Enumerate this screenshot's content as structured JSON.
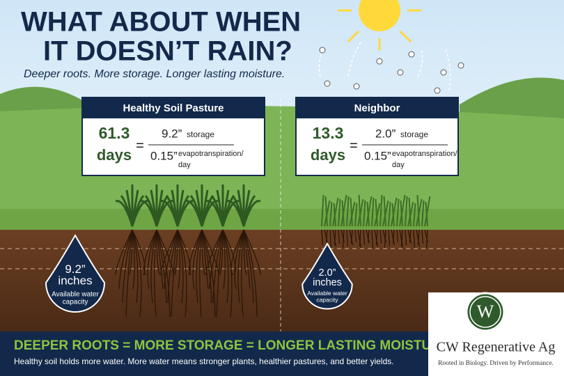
{
  "header": {
    "title_lines": [
      "WHAT ABOUT WHEN",
      "IT DOESN’T RAIN?"
    ],
    "subtitle": "Deeper roots. More storage. Longer lasting moisture."
  },
  "panels": [
    {
      "title": "Healthy Soil Pasture",
      "days": "61.3",
      "days_unit": "days",
      "equals": "=",
      "storage": "9.2”",
      "storage_label": "storage",
      "et": "0.15”",
      "et_label_lines": [
        "evapotranspiration/",
        "day"
      ]
    },
    {
      "title": "Neighbor",
      "days": "13.3",
      "days_unit": "days",
      "equals": "=",
      "storage": "2.0”",
      "storage_label": "storage",
      "et": "0.15”",
      "et_label_lines": [
        "evapotranspiration/",
        "day"
      ]
    }
  ],
  "drops": [
    {
      "value": "9.2”",
      "unit": "inches",
      "caption_lines": [
        "Available water",
        "capacity"
      ]
    },
    {
      "value": "2.0”",
      "unit": "inches",
      "caption_lines": [
        "Available water",
        "capacity"
      ]
    }
  ],
  "footer": {
    "headline": "DEEPER ROOTS = MORE STORAGE = LONGER LASTING MOISTURE",
    "text": "Healthy soil holds more water. More water means stronger plants, healthier pastures, and better yields."
  },
  "logo": {
    "monogram": "W",
    "name": "CW Regenerative Ag",
    "tagline": "Rooted in Biology. Driven by Performance."
  }
}
